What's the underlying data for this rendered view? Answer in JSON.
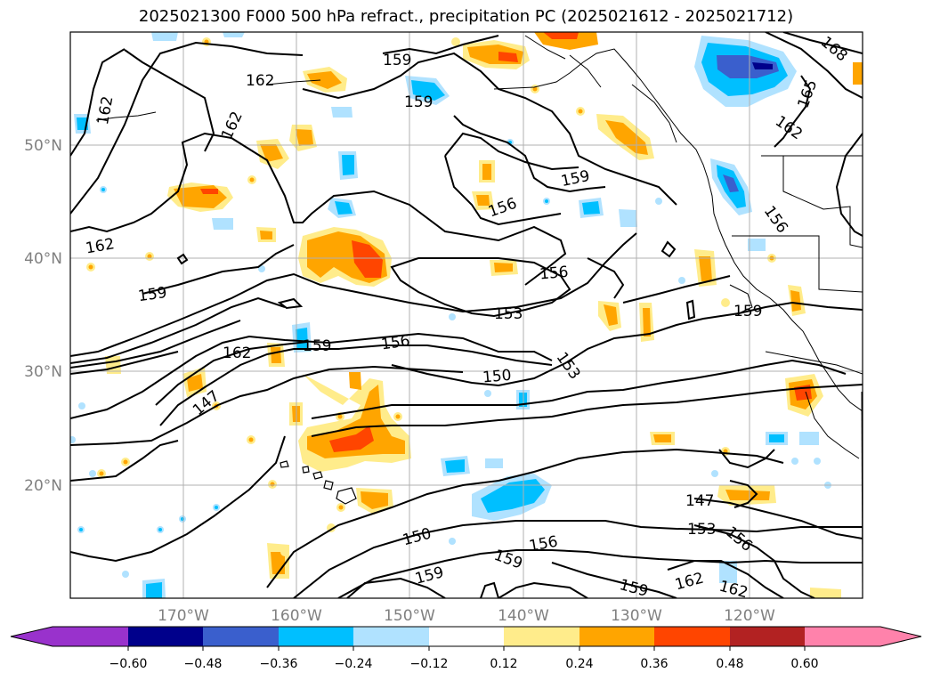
{
  "title": "2025021300 F000 500 hPa refract., precipitation PC (2025021612 - 2025021712)",
  "lat_labels": [
    "50°N",
    "40°N",
    "30°N",
    "20°N"
  ],
  "lon_labels": [
    "170°W",
    "160°W",
    "150°W",
    "140°W",
    "130°W",
    "120°W"
  ],
  "contour_labels": [
    "162",
    "162",
    "162",
    "159",
    "159",
    "162",
    "168",
    "165",
    "162",
    "159",
    "156",
    "156",
    "162",
    "159",
    "156",
    "153",
    "159",
    "162",
    "159",
    "156",
    "147",
    "150",
    "153",
    "147",
    "153",
    "156",
    "150",
    "156",
    "159",
    "159",
    "159",
    "162",
    "162"
  ],
  "colorbar": {
    "ticks": [
      "−0.60",
      "−0.48",
      "−0.36",
      "−0.24",
      "−0.12",
      "0.12",
      "0.24",
      "0.36",
      "0.48",
      "0.60"
    ],
    "colors": [
      "#9932cc",
      "#00008b",
      "#3a5fcd",
      "#00bfff",
      "#b0e2ff",
      "#ffffff",
      "#ffec8b",
      "#ffa500",
      "#ff4500",
      "#b22222",
      "#ff82ab"
    ]
  }
}
